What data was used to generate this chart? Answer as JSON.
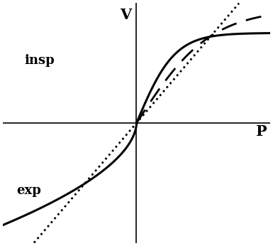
{
  "title": "",
  "xlabel": "P",
  "ylabel": "V",
  "label_insp": "insp",
  "label_exp": "exp",
  "background_color": "#ffffff",
  "axis_color": "#000000",
  "curve_color": "#000000",
  "xlim": [
    -1.0,
    1.0
  ],
  "ylim": [
    -1.0,
    1.0
  ],
  "figsize": [
    3.85,
    3.46
  ],
  "dpi": 100
}
